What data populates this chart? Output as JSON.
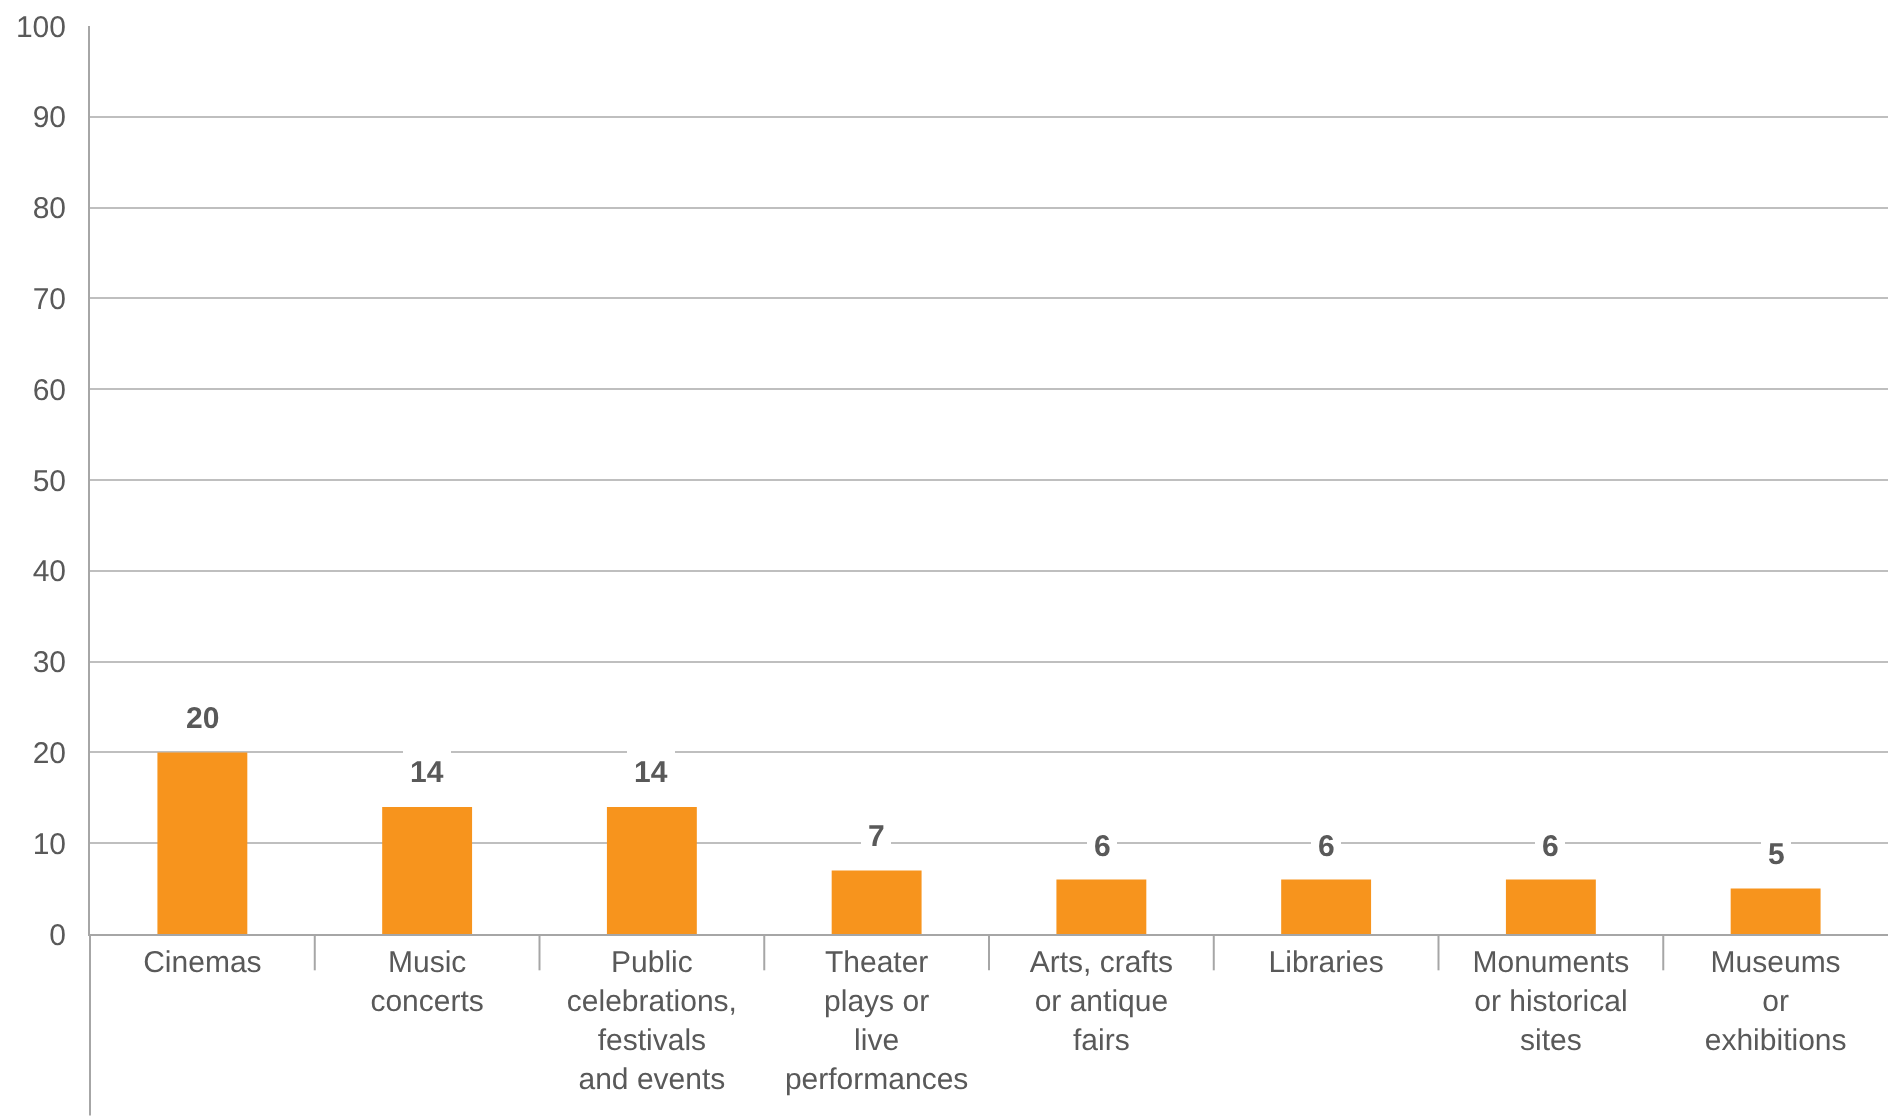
{
  "chart_data": {
    "type": "bar",
    "categories": [
      "Cinemas",
      "Music\nconcerts",
      "Public\ncelebrations,\nfestivals\nand events",
      "Theater\nplays or\nlive\nperformances",
      "Arts, crafts\nor antique\nfairs",
      "Libraries",
      "Monuments\nor historical\nsites",
      "Museums\nor\nexhibitions"
    ],
    "values": [
      20,
      14,
      14,
      7,
      6,
      6,
      6,
      5
    ],
    "color": "#f7941d",
    "ylim": [
      0,
      100
    ],
    "yticks": [
      0,
      10,
      20,
      30,
      40,
      50,
      60,
      70,
      80,
      90,
      100
    ],
    "grid": "y",
    "data_labels": true,
    "legend": false
  }
}
